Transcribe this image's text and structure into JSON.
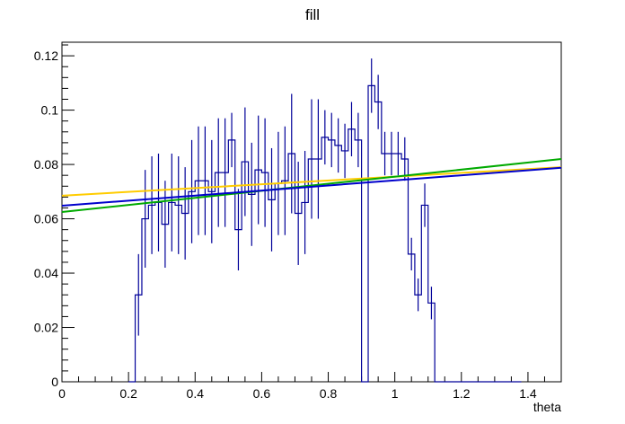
{
  "chart_data": {
    "type": "line",
    "title": "fill",
    "xlabel": "theta",
    "ylabel": "",
    "xlim": [
      0,
      1.5
    ],
    "ylim": [
      0,
      0.125
    ],
    "grid": false,
    "x_ticks": [
      0,
      0.2,
      0.4,
      0.6,
      0.8,
      1.0,
      1.2,
      1.4
    ],
    "x_tick_labels": [
      "0",
      "0.2",
      "0.4",
      "0.6",
      "0.8",
      "1",
      "1.2",
      "1.4"
    ],
    "y_ticks": [
      0,
      0.02,
      0.04,
      0.06,
      0.08,
      0.1,
      0.12
    ],
    "y_tick_labels": [
      "0",
      "0.02",
      "0.04",
      "0.06",
      "0.08",
      "0.1",
      "0.12"
    ],
    "histogram": {
      "color": "#000099",
      "bin_edges": [
        0.2,
        0.22,
        0.24,
        0.26,
        0.28,
        0.3,
        0.32,
        0.34,
        0.36,
        0.38,
        0.4,
        0.42,
        0.44,
        0.46,
        0.48,
        0.5,
        0.52,
        0.54,
        0.56,
        0.58,
        0.6,
        0.62,
        0.64,
        0.66,
        0.68,
        0.7,
        0.72,
        0.74,
        0.76,
        0.78,
        0.8,
        0.82,
        0.84,
        0.86,
        0.88,
        0.9,
        0.92,
        0.94,
        0.96,
        0.98,
        1.0,
        1.02,
        1.04,
        1.06,
        1.08,
        1.1,
        1.12,
        1.14,
        1.16,
        1.18,
        1.2,
        1.22,
        1.24,
        1.26,
        1.28,
        1.3,
        1.32,
        1.34,
        1.36,
        1.38
      ],
      "values": [
        0.0,
        0.032,
        0.06,
        0.065,
        0.066,
        0.058,
        0.066,
        0.065,
        0.062,
        0.07,
        0.074,
        0.074,
        0.07,
        0.077,
        0.077,
        0.089,
        0.056,
        0.081,
        0.069,
        0.078,
        0.077,
        0.067,
        0.073,
        0.074,
        0.084,
        0.062,
        0.066,
        0.082,
        0.082,
        0.09,
        0.089,
        0.087,
        0.085,
        0.093,
        0.089,
        0.0,
        0.109,
        0.103,
        0.084,
        0.084,
        0.084,
        0.082,
        0.047,
        0.032,
        0.065,
        0.029,
        0.0,
        0.0,
        0.0,
        0.0,
        0.0,
        0.0,
        0.0,
        0.0,
        0.0,
        0.0,
        0.0,
        0.0,
        0.0
      ],
      "errors": [
        0.0,
        0.015,
        0.018,
        0.018,
        0.018,
        0.016,
        0.018,
        0.018,
        0.017,
        0.019,
        0.02,
        0.02,
        0.019,
        0.02,
        0.02,
        0.01,
        0.015,
        0.02,
        0.019,
        0.02,
        0.02,
        0.019,
        0.019,
        0.02,
        0.022,
        0.019,
        0.019,
        0.022,
        0.022,
        0.01,
        0.01,
        0.01,
        0.01,
        0.01,
        0.01,
        0.0,
        0.01,
        0.01,
        0.008,
        0.008,
        0.008,
        0.008,
        0.006,
        0.006,
        0.008,
        0.006,
        0.0,
        0.0,
        0.0,
        0.0,
        0.0,
        0.0,
        0.0,
        0.0,
        0.0,
        0.0,
        0.0,
        0.0,
        0.0
      ]
    },
    "fit_lines": [
      {
        "color": "#ffcc00",
        "x": [
          0,
          1.5
        ],
        "y": [
          0.0685,
          0.079
        ]
      },
      {
        "color": "#00aa00",
        "x": [
          0,
          1.5
        ],
        "y": [
          0.0625,
          0.082
        ]
      },
      {
        "color": "#0000cc",
        "x": [
          0,
          1.5
        ],
        "y": [
          0.0648,
          0.0788
        ]
      }
    ]
  }
}
